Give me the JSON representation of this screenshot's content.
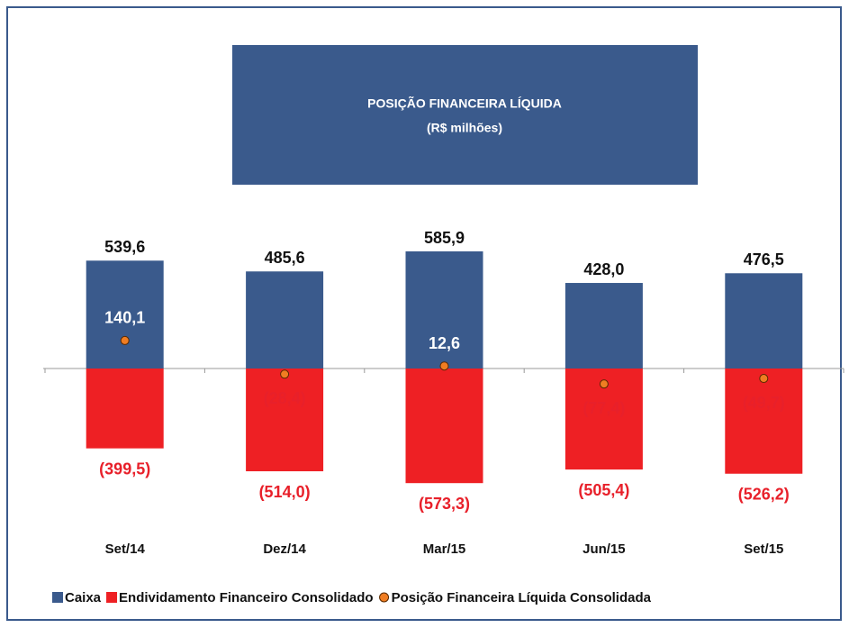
{
  "chart_data": {
    "type": "bar",
    "title": "POSIÇÃO FINANCEIRA LÍQUIDA",
    "subtitle": "(R$ milhões)",
    "categories": [
      "Set/14",
      "Dez/14",
      "Mar/15",
      "Jun/15",
      "Set/15"
    ],
    "series": [
      {
        "name": "Caixa",
        "color": "#3a5a8c",
        "values": [
          539.6,
          485.6,
          585.9,
          428.0,
          476.5
        ],
        "value_labels": [
          "539,6",
          "485,6",
          "585,9",
          "428,0",
          "476,5"
        ]
      },
      {
        "name": "Endividamento Financeiro Consolidado",
        "color": "#ee2024",
        "values": [
          -399.5,
          -514.0,
          -573.3,
          -505.4,
          -526.2
        ],
        "value_labels": [
          "(399,5)",
          "(514,0)",
          "(573,3)",
          "(505,4)",
          "(526,2)"
        ]
      },
      {
        "name": "Posição Financeira Líquida Consolidada",
        "color": "#f07d22",
        "type": "scatter",
        "values": [
          140.1,
          -28.4,
          12.6,
          -77.4,
          -49.7
        ],
        "value_labels": [
          "140,1",
          "(28,4)",
          "12,6",
          "(77,4)",
          "(49,7)"
        ]
      }
    ]
  }
}
